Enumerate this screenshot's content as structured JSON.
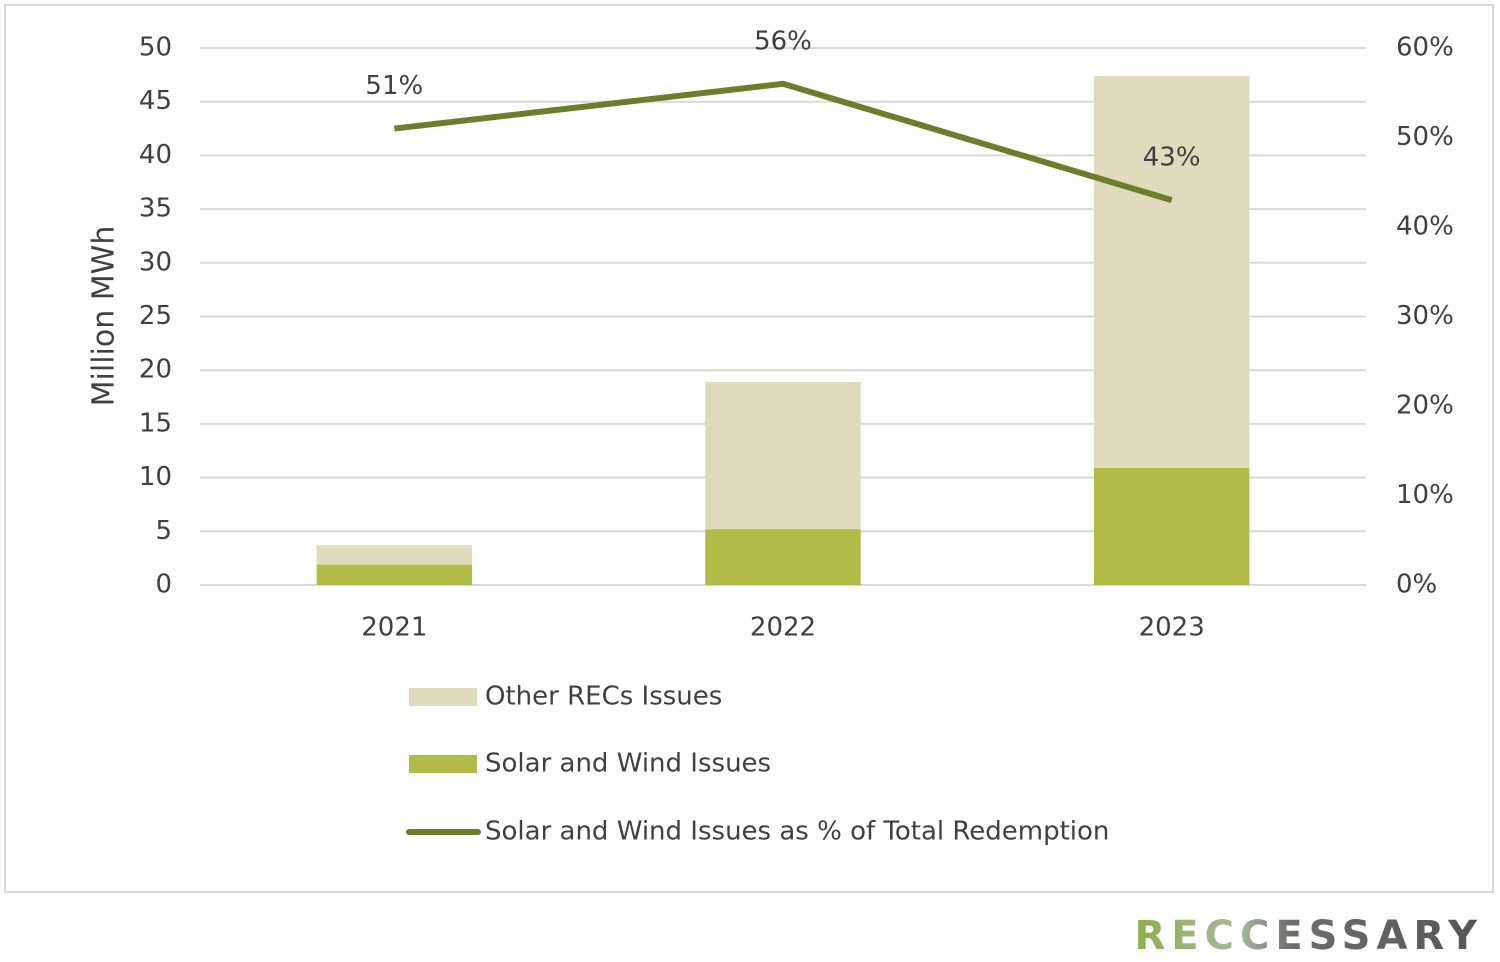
{
  "chart_data": {
    "type": "bar",
    "categories": [
      "2021",
      "2022",
      "2023"
    ],
    "y_label": "Million MWh",
    "ylim": [
      0,
      50
    ],
    "yticks": [
      0,
      5,
      10,
      15,
      20,
      25,
      30,
      35,
      40,
      45,
      50
    ],
    "y2lim": [
      0,
      60
    ],
    "y2ticks": [
      {
        "value": 0,
        "label": "0%"
      },
      {
        "value": 10,
        "label": "10%"
      },
      {
        "value": 20,
        "label": "20%"
      },
      {
        "value": 30,
        "label": "30%"
      },
      {
        "value": 40,
        "label": "40%"
      },
      {
        "value": 50,
        "label": "50%"
      },
      {
        "value": 60,
        "label": "60%"
      }
    ],
    "grid": true,
    "stacked": true,
    "legend": "bottom",
    "series": [
      {
        "name": "Other RECs Issues",
        "type": "bar",
        "color": "#e0dbbd",
        "values": [
          1.8,
          13.7,
          36.5
        ]
      },
      {
        "name": "Solar and Wind Issues",
        "type": "bar",
        "color": "#afbc47",
        "values": [
          1.9,
          5.2,
          10.9
        ]
      },
      {
        "name": "Solar and Wind Issues as % of Total Redemption",
        "type": "line",
        "axis": "y2",
        "color": "#6b7f2a",
        "values": [
          51,
          56,
          43
        ],
        "value_labels": [
          "51%",
          "56%",
          "43%"
        ]
      }
    ]
  },
  "logo": "RECCESSARY"
}
